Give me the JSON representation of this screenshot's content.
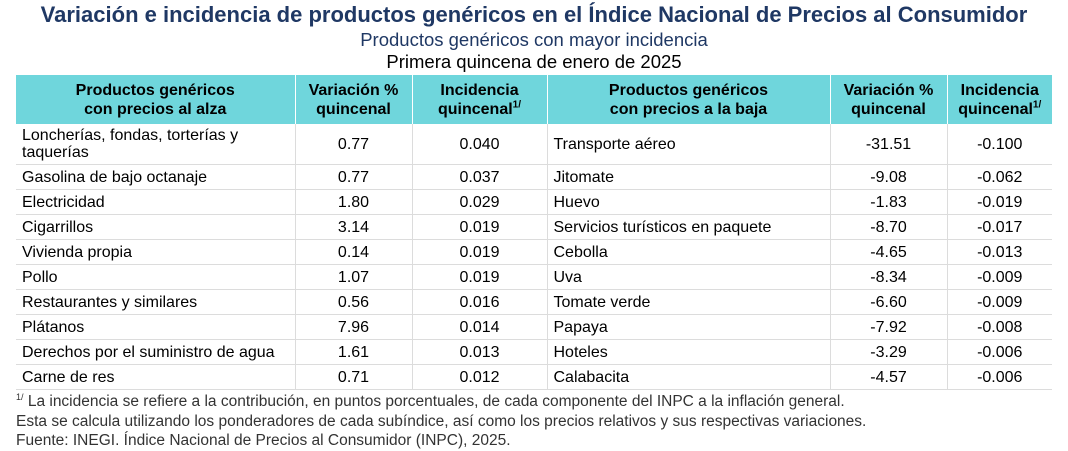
{
  "header": {
    "title": "Variación e incidencia de productos genéricos en el Índice Nacional de Precios al Consumidor",
    "subtitle": "Productos genéricos con mayor incidencia",
    "period": "Primera quincena de enero de 2025"
  },
  "table": {
    "columns": {
      "rise_product_line1": "Productos genéricos",
      "rise_product_line2": "con precios al alza",
      "variation_line1": "Variación %",
      "variation_line2": "quincenal",
      "incidence_line1": "Incidencia",
      "incidence_line2": "quincenal",
      "incidence_sup": "1/",
      "fall_product_line1": "Productos genéricos",
      "fall_product_line2": "con precios a la baja"
    },
    "rows": [
      {
        "up_name": "Loncherías, fondas, torterías y taquerías",
        "up_var": "0.77",
        "up_inc": "0.040",
        "down_name": "Transporte aéreo",
        "down_var": "-31.51",
        "down_inc": "-0.100"
      },
      {
        "up_name": "Gasolina de bajo octanaje",
        "up_var": "0.77",
        "up_inc": "0.037",
        "down_name": "Jitomate",
        "down_var": "-9.08",
        "down_inc": "-0.062"
      },
      {
        "up_name": "Electricidad",
        "up_var": "1.80",
        "up_inc": "0.029",
        "down_name": "Huevo",
        "down_var": "-1.83",
        "down_inc": "-0.019"
      },
      {
        "up_name": "Cigarrillos",
        "up_var": "3.14",
        "up_inc": "0.019",
        "down_name": "Servicios turísticos en paquete",
        "down_var": "-8.70",
        "down_inc": "-0.017"
      },
      {
        "up_name": "Vivienda propia",
        "up_var": "0.14",
        "up_inc": "0.019",
        "down_name": "Cebolla",
        "down_var": "-4.65",
        "down_inc": "-0.013"
      },
      {
        "up_name": "Pollo",
        "up_var": "1.07",
        "up_inc": "0.019",
        "down_name": "Uva",
        "down_var": "-8.34",
        "down_inc": "-0.009"
      },
      {
        "up_name": "Restaurantes y similares",
        "up_var": "0.56",
        "up_inc": "0.016",
        "down_name": "Tomate verde",
        "down_var": "-6.60",
        "down_inc": "-0.009"
      },
      {
        "up_name": "Plátanos",
        "up_var": "7.96",
        "up_inc": "0.014",
        "down_name": "Papaya",
        "down_var": "-7.92",
        "down_inc": "-0.008"
      },
      {
        "up_name": "Derechos por el suministro de agua",
        "up_var": "1.61",
        "up_inc": "0.013",
        "down_name": "Hoteles",
        "down_var": "-3.29",
        "down_inc": "-0.006"
      },
      {
        "up_name": "Carne de res",
        "up_var": "0.71",
        "up_inc": "0.012",
        "down_name": "Calabacita",
        "down_var": "-4.57",
        "down_inc": "-0.006"
      }
    ]
  },
  "footnotes": {
    "note_sup": "1/",
    "note1": " La incidencia se refiere a la contribución, en puntos porcentuales, de cada componente del INPC a la inflación general.",
    "note2": "Esta se calcula utilizando los ponderadores de cada subíndice, así como los precios relativos y sus respectivas variaciones.",
    "source": "Fuente: INEGI. Índice Nacional de Precios al Consumidor (INPC), 2025."
  },
  "colors": {
    "title": "#1f3864",
    "header_fill": "#6fd6dc"
  }
}
